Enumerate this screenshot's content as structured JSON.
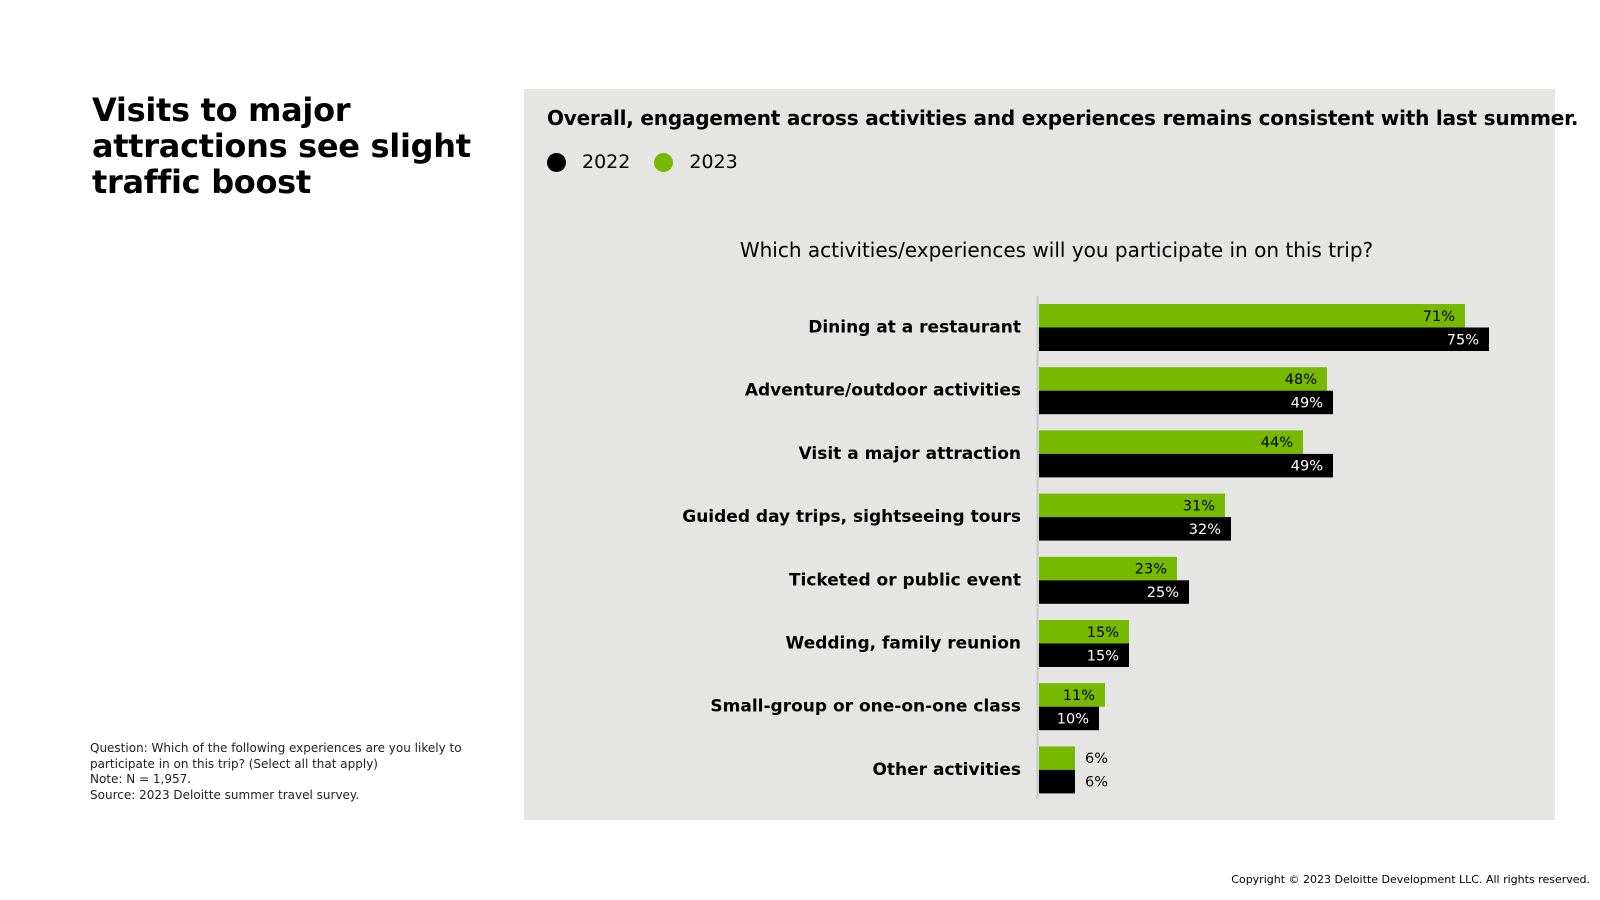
{
  "slide": {
    "title": "Visits to major attractions see slight traffic boost",
    "notes": [
      "Question: Which of the following experiences are you likely to participate in on this trip? (Select all that apply)",
      "Note: N = 1,957.",
      "Source: 2023 Deloitte summer travel survey."
    ],
    "copyright": "Copyright © 2023 Deloitte Development LLC. All rights reserved.",
    "headline": "Overall, engagement across activities and experiences remains consistent with last summer."
  },
  "colors": {
    "series_2022": "#000000",
    "series_2023": "#76b900",
    "panel_background": "#e5e5e4",
    "axis_line": "#c8c8c8"
  },
  "chart_data": {
    "type": "bar",
    "orientation": "horizontal",
    "title": "Which activities/experiences will you participate in on this trip?",
    "xlabel": "",
    "ylabel": "",
    "xlim": [
      0,
      100
    ],
    "grid": false,
    "value_suffix": "%",
    "legend_position": "top-left",
    "categories": [
      "Dining at a restaurant",
      "Adventure/outdoor activities",
      "Visit a major attraction",
      "Guided day trips, sightseeing tours",
      "Ticketed or public event",
      "Wedding, family reunion",
      "Small-group or one-on-one class",
      "Other activities"
    ],
    "series": [
      {
        "name": "2023",
        "color": "#76b900",
        "values": [
          71,
          48,
          44,
          31,
          23,
          15,
          11,
          6
        ]
      },
      {
        "name": "2022",
        "color": "#000000",
        "values": [
          75,
          49,
          49,
          32,
          25,
          15,
          10,
          6
        ]
      }
    ],
    "legend": [
      {
        "name": "2022",
        "color": "#000000"
      },
      {
        "name": "2023",
        "color": "#76b900"
      }
    ]
  }
}
